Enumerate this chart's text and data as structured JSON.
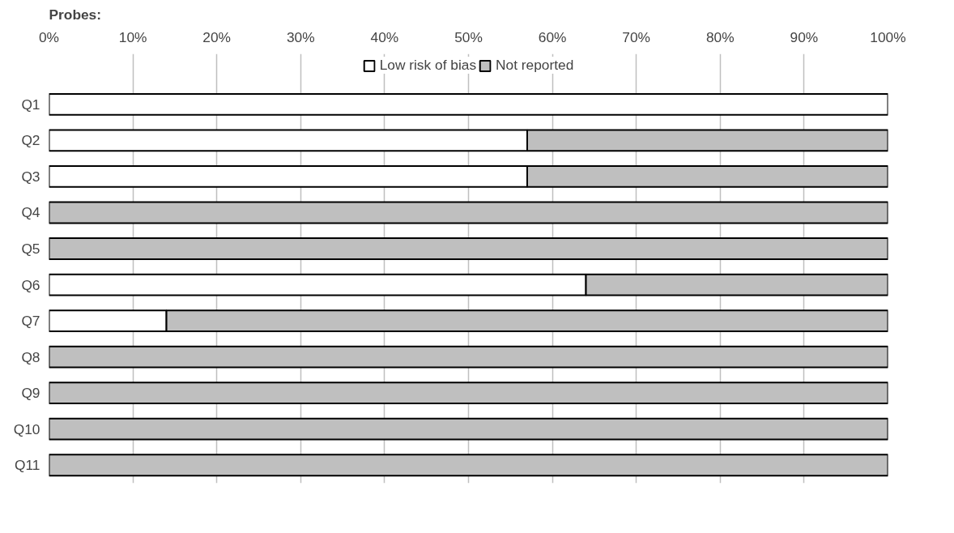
{
  "chart_data": {
    "type": "bar",
    "orientation": "horizontal",
    "stacked": true,
    "title": "Probes:",
    "categories": [
      "Q1",
      "Q2",
      "Q3",
      "Q4",
      "Q5",
      "Q6",
      "Q7",
      "Q8",
      "Q9",
      "Q10",
      "Q11"
    ],
    "series": [
      {
        "name": "Low risk of bias",
        "color": "#ffffff",
        "values": [
          100,
          57,
          57,
          0,
          0,
          64,
          14,
          0,
          0,
          0,
          0
        ]
      },
      {
        "name": "Not reported",
        "color": "#bfbfbf",
        "values": [
          0,
          43,
          43,
          100,
          100,
          36,
          86,
          100,
          100,
          100,
          100
        ]
      }
    ],
    "xlim": [
      0,
      100
    ],
    "xticks": [
      {
        "value": 0,
        "label": "0%"
      },
      {
        "value": 10,
        "label": "10%"
      },
      {
        "value": 20,
        "label": "20%"
      },
      {
        "value": 30,
        "label": "30%"
      },
      {
        "value": 40,
        "label": "40%"
      },
      {
        "value": 50,
        "label": "50%"
      },
      {
        "value": 60,
        "label": "60%"
      },
      {
        "value": 70,
        "label": "70%"
      },
      {
        "value": 80,
        "label": "80%"
      },
      {
        "value": 90,
        "label": "90%"
      },
      {
        "value": 100,
        "label": "100%"
      }
    ],
    "grid": "x",
    "legend": "top"
  }
}
